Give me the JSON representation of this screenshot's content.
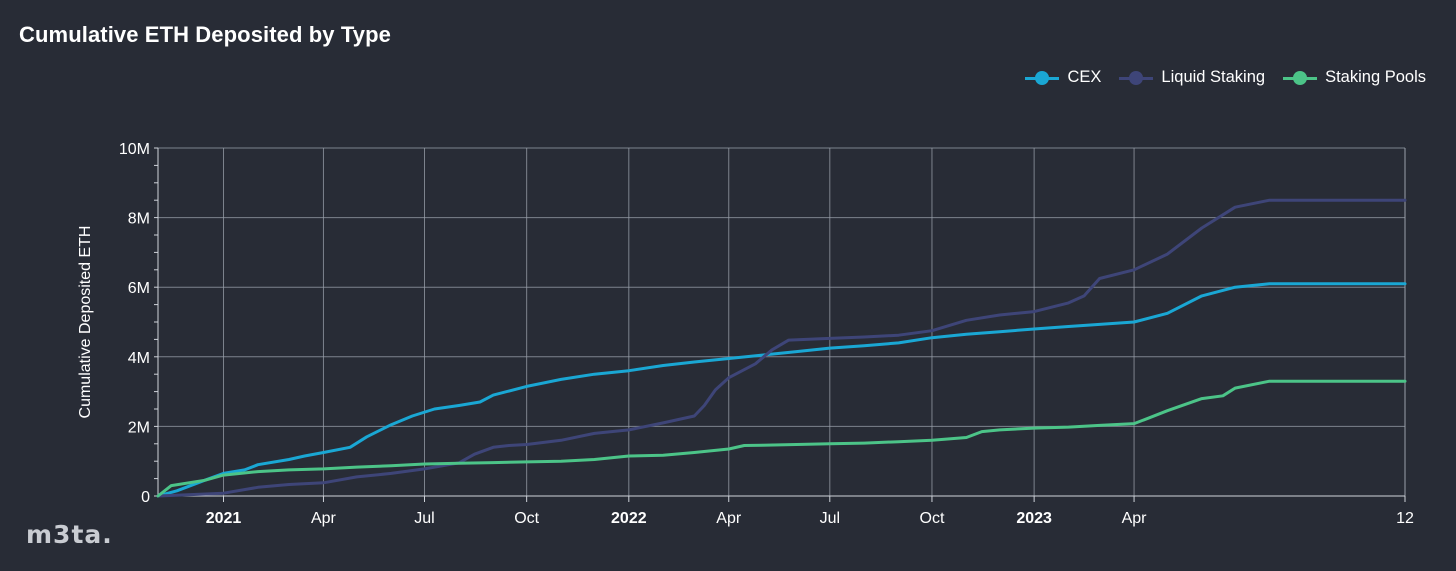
{
  "title": "Cumulative ETH Deposited by Type",
  "logo_text": "m3ta.",
  "legend": [
    {
      "label": "CEX",
      "color": "#1aa7d4"
    },
    {
      "label": "Liquid Staking",
      "color": "#3e4578"
    },
    {
      "label": "Staking Pools",
      "color": "#4cc488"
    }
  ],
  "chart_data": {
    "type": "line",
    "title": "Cumulative ETH Deposited by Type",
    "ylabel": "Cumulative Deposited ETH",
    "xlabel": "",
    "ylim": [
      0,
      10000000
    ],
    "xlim": [
      "2020-11-03",
      "2023-12-01"
    ],
    "grid": true,
    "legend_position": "top-right",
    "y_ticks": [
      {
        "value": 0,
        "label": "0"
      },
      {
        "value": 2000000,
        "label": "2M"
      },
      {
        "value": 4000000,
        "label": "4M"
      },
      {
        "value": 6000000,
        "label": "6M"
      },
      {
        "value": 8000000,
        "label": "8M"
      },
      {
        "value": 10000000,
        "label": "10M"
      }
    ],
    "x_ticks": [
      {
        "date": "2021-01-01",
        "label": "2021",
        "bold": true
      },
      {
        "date": "2021-04-01",
        "label": "Apr",
        "bold": false
      },
      {
        "date": "2021-07-01",
        "label": "Jul",
        "bold": false
      },
      {
        "date": "2021-10-01",
        "label": "Oct",
        "bold": false
      },
      {
        "date": "2022-01-01",
        "label": "2022",
        "bold": true
      },
      {
        "date": "2022-04-01",
        "label": "Apr",
        "bold": false
      },
      {
        "date": "2022-07-01",
        "label": "Jul",
        "bold": false
      },
      {
        "date": "2022-10-01",
        "label": "Oct",
        "bold": false
      },
      {
        "date": "2023-01-01",
        "label": "2023",
        "bold": true
      },
      {
        "date": "2023-04-01",
        "label": "Apr",
        "bold": false
      },
      {
        "date": "2023-12-01",
        "label": "12",
        "bold": false
      }
    ],
    "series": [
      {
        "name": "CEX",
        "color": "#1aa7d4",
        "points": [
          [
            "2020-11-03",
            0
          ],
          [
            "2020-11-20",
            150000
          ],
          [
            "2020-12-15",
            450000
          ],
          [
            "2021-01-01",
            650000
          ],
          [
            "2021-01-20",
            750000
          ],
          [
            "2021-02-01",
            900000
          ],
          [
            "2021-03-01",
            1050000
          ],
          [
            "2021-03-15",
            1150000
          ],
          [
            "2021-04-01",
            1250000
          ],
          [
            "2021-04-25",
            1400000
          ],
          [
            "2021-05-10",
            1700000
          ],
          [
            "2021-06-01",
            2050000
          ],
          [
            "2021-06-20",
            2300000
          ],
          [
            "2021-07-10",
            2500000
          ],
          [
            "2021-08-01",
            2600000
          ],
          [
            "2021-08-20",
            2700000
          ],
          [
            "2021-09-01",
            2900000
          ],
          [
            "2021-10-01",
            3150000
          ],
          [
            "2021-11-01",
            3350000
          ],
          [
            "2021-12-01",
            3500000
          ],
          [
            "2022-01-01",
            3600000
          ],
          [
            "2022-02-01",
            3750000
          ],
          [
            "2022-03-01",
            3850000
          ],
          [
            "2022-04-01",
            3950000
          ],
          [
            "2022-05-01",
            4050000
          ],
          [
            "2022-06-01",
            4150000
          ],
          [
            "2022-07-01",
            4250000
          ],
          [
            "2022-08-01",
            4320000
          ],
          [
            "2022-09-01",
            4400000
          ],
          [
            "2022-10-01",
            4550000
          ],
          [
            "2022-11-01",
            4650000
          ],
          [
            "2022-12-01",
            4720000
          ],
          [
            "2023-01-01",
            4800000
          ],
          [
            "2023-02-01",
            4870000
          ],
          [
            "2023-03-01",
            4930000
          ],
          [
            "2023-04-01",
            5000000
          ],
          [
            "2023-05-01",
            5250000
          ],
          [
            "2023-06-01",
            5750000
          ],
          [
            "2023-07-01",
            6000000
          ],
          [
            "2023-08-01",
            6100000
          ],
          [
            "2023-12-01",
            6100000
          ]
        ]
      },
      {
        "name": "Liquid Staking",
        "color": "#3e4578",
        "points": [
          [
            "2020-11-03",
            0
          ],
          [
            "2021-01-01",
            80000
          ],
          [
            "2021-02-01",
            250000
          ],
          [
            "2021-03-01",
            330000
          ],
          [
            "2021-04-01",
            380000
          ],
          [
            "2021-05-01",
            550000
          ],
          [
            "2021-06-01",
            650000
          ],
          [
            "2021-07-01",
            780000
          ],
          [
            "2021-08-01",
            950000
          ],
          [
            "2021-08-15",
            1200000
          ],
          [
            "2021-09-01",
            1400000
          ],
          [
            "2021-09-15",
            1450000
          ],
          [
            "2021-10-01",
            1480000
          ],
          [
            "2021-11-01",
            1600000
          ],
          [
            "2021-12-01",
            1800000
          ],
          [
            "2022-01-01",
            1900000
          ],
          [
            "2022-02-01",
            2100000
          ],
          [
            "2022-03-01",
            2300000
          ],
          [
            "2022-03-10",
            2600000
          ],
          [
            "2022-03-20",
            3050000
          ],
          [
            "2022-04-01",
            3400000
          ],
          [
            "2022-04-25",
            3800000
          ],
          [
            "2022-05-10",
            4200000
          ],
          [
            "2022-05-25",
            4480000
          ],
          [
            "2022-07-01",
            4530000
          ],
          [
            "2022-08-01",
            4570000
          ],
          [
            "2022-09-01",
            4620000
          ],
          [
            "2022-10-01",
            4750000
          ],
          [
            "2022-11-01",
            5050000
          ],
          [
            "2022-12-01",
            5200000
          ],
          [
            "2023-01-01",
            5300000
          ],
          [
            "2023-02-01",
            5550000
          ],
          [
            "2023-02-15",
            5750000
          ],
          [
            "2023-03-01",
            6250000
          ],
          [
            "2023-04-01",
            6500000
          ],
          [
            "2023-05-01",
            6950000
          ],
          [
            "2023-06-01",
            7700000
          ],
          [
            "2023-07-01",
            8300000
          ],
          [
            "2023-08-01",
            8500000
          ],
          [
            "2023-12-01",
            8500000
          ]
        ]
      },
      {
        "name": "Staking Pools",
        "color": "#4cc488",
        "points": [
          [
            "2020-11-03",
            0
          ],
          [
            "2020-11-15",
            300000
          ],
          [
            "2020-12-15",
            450000
          ],
          [
            "2021-01-01",
            600000
          ],
          [
            "2021-02-01",
            700000
          ],
          [
            "2021-03-01",
            750000
          ],
          [
            "2021-04-01",
            780000
          ],
          [
            "2021-05-01",
            830000
          ],
          [
            "2021-06-01",
            870000
          ],
          [
            "2021-07-01",
            920000
          ],
          [
            "2021-08-01",
            940000
          ],
          [
            "2021-09-01",
            960000
          ],
          [
            "2021-10-01",
            980000
          ],
          [
            "2021-11-01",
            1000000
          ],
          [
            "2021-12-01",
            1050000
          ],
          [
            "2022-01-01",
            1150000
          ],
          [
            "2022-02-01",
            1170000
          ],
          [
            "2022-03-01",
            1250000
          ],
          [
            "2022-04-01",
            1350000
          ],
          [
            "2022-04-15",
            1450000
          ],
          [
            "2022-05-01",
            1460000
          ],
          [
            "2022-06-01",
            1480000
          ],
          [
            "2022-07-01",
            1500000
          ],
          [
            "2022-08-01",
            1520000
          ],
          [
            "2022-09-01",
            1560000
          ],
          [
            "2022-10-01",
            1600000
          ],
          [
            "2022-11-01",
            1680000
          ],
          [
            "2022-11-15",
            1850000
          ],
          [
            "2022-12-01",
            1900000
          ],
          [
            "2023-01-01",
            1950000
          ],
          [
            "2023-02-01",
            1980000
          ],
          [
            "2023-03-01",
            2030000
          ],
          [
            "2023-04-01",
            2080000
          ],
          [
            "2023-04-15",
            2250000
          ],
          [
            "2023-05-01",
            2450000
          ],
          [
            "2023-06-01",
            2800000
          ],
          [
            "2023-06-20",
            2880000
          ],
          [
            "2023-07-01",
            3100000
          ],
          [
            "2023-08-01",
            3300000
          ],
          [
            "2023-12-01",
            3300000
          ]
        ]
      }
    ]
  }
}
